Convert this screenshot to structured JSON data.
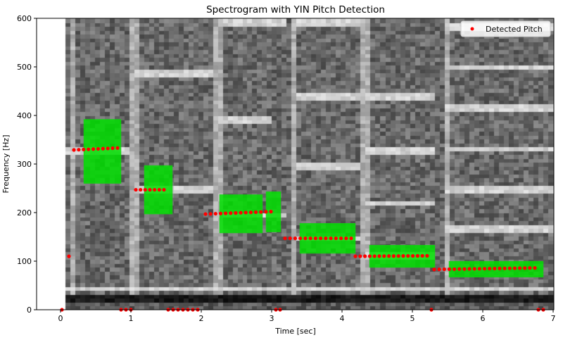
{
  "chart_data": {
    "type": "scatter",
    "title": "Spectrogram with YIN Pitch Detection",
    "xlabel": "Time [sec]",
    "ylabel": "Frequency [Hz]",
    "xlim": [
      -0.34,
      7.01
    ],
    "ylim": [
      0,
      600
    ],
    "xticks": [
      0,
      1,
      2,
      3,
      4,
      5,
      6,
      7
    ],
    "yticks": [
      0,
      100,
      200,
      300,
      400,
      500,
      600
    ],
    "legend": {
      "position": "top-right",
      "entries": [
        "Detected Pitch"
      ]
    },
    "colors": {
      "pitch": "#ff0000",
      "highlight": "#00e000"
    },
    "spectrogram_time_range": [
      0.07,
      7.0
    ],
    "pitch_segments": [
      {
        "t_start": 0.19,
        "t_end": 0.81,
        "hz_start": 329,
        "hz_end": 333
      },
      {
        "t_start": 1.07,
        "t_end": 1.47,
        "hz_start": 247,
        "hz_end": 247
      },
      {
        "t_start": 2.06,
        "t_end": 2.99,
        "hz_start": 197,
        "hz_end": 202
      },
      {
        "t_start": 3.19,
        "t_end": 4.13,
        "hz_start": 147,
        "hz_end": 147
      },
      {
        "t_start": 4.19,
        "t_end": 5.21,
        "hz_start": 110,
        "hz_end": 111
      },
      {
        "t_start": 5.31,
        "t_end": 6.74,
        "hz_start": 83,
        "hz_end": 86
      }
    ],
    "pitch_single_points": [
      {
        "t": 0.12,
        "hz": 110
      }
    ],
    "pitch_zero_points": [
      0.02,
      0.86,
      0.93,
      1.0,
      1.53,
      1.6,
      1.67,
      1.74,
      1.81,
      1.88,
      1.95,
      3.06,
      3.12,
      5.27,
      6.79,
      6.86
    ],
    "highlight_regions": [
      {
        "t0": 0.33,
        "t1": 0.86,
        "hz0": 260,
        "hz1": 392
      },
      {
        "t0": 1.19,
        "t1": 1.59,
        "hz0": 197,
        "hz1": 297
      },
      {
        "t0": 2.26,
        "t1": 2.87,
        "hz0": 158,
        "hz1": 237
      },
      {
        "t0": 2.92,
        "t1": 3.13,
        "hz0": 160,
        "hz1": 243
      },
      {
        "t0": 3.4,
        "t1": 4.19,
        "hz0": 116,
        "hz1": 178
      },
      {
        "t0": 4.39,
        "t1": 5.32,
        "hz0": 87,
        "hz1": 133
      },
      {
        "t0": 5.52,
        "t1": 6.86,
        "hz0": 67,
        "hz1": 100
      }
    ],
    "harmonic_lines": [
      {
        "t0": 0.07,
        "t1": 7.0,
        "hz": 45
      },
      {
        "t0": 0.07,
        "t1": 0.95,
        "hz": 330
      },
      {
        "t0": 1.0,
        "t1": 2.15,
        "hz": 490
      },
      {
        "t0": 1.0,
        "t1": 2.15,
        "hz": 247
      },
      {
        "t0": 2.2,
        "t1": 3.0,
        "hz": 393
      },
      {
        "t0": 2.2,
        "t1": 3.2,
        "hz": 197
      },
      {
        "t0": 2.2,
        "t1": 3.2,
        "hz": 590
      },
      {
        "t0": 3.3,
        "t1": 4.25,
        "hz": 440
      },
      {
        "t0": 3.3,
        "t1": 4.25,
        "hz": 295
      },
      {
        "t0": 3.3,
        "t1": 4.25,
        "hz": 147
      },
      {
        "t0": 3.3,
        "t1": 4.25,
        "hz": 590
      },
      {
        "t0": 4.3,
        "t1": 5.3,
        "hz": 440
      },
      {
        "t0": 4.3,
        "t1": 5.3,
        "hz": 330
      },
      {
        "t0": 4.3,
        "t1": 5.3,
        "hz": 220
      },
      {
        "t0": 4.3,
        "t1": 5.3,
        "hz": 110
      },
      {
        "t0": 5.45,
        "t1": 7.0,
        "hz": 500
      },
      {
        "t0": 5.45,
        "t1": 7.0,
        "hz": 415
      },
      {
        "t0": 5.45,
        "t1": 7.0,
        "hz": 333
      },
      {
        "t0": 5.45,
        "t1": 7.0,
        "hz": 250
      },
      {
        "t0": 5.45,
        "t1": 7.0,
        "hz": 167
      },
      {
        "t0": 5.45,
        "t1": 7.0,
        "hz": 585
      }
    ],
    "onsets": [
      0.15,
      1.02,
      2.2,
      3.3,
      4.3,
      5.45
    ]
  }
}
